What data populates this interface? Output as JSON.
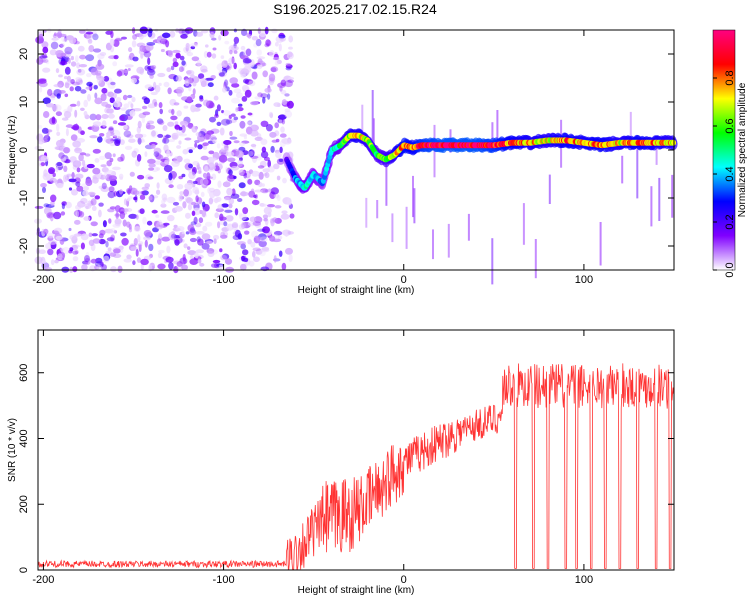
{
  "chart_data": [
    {
      "type": "heatmap",
      "title": "S196.2025.217.02.15.R24",
      "xlabel": "Height of straight line (km)",
      "ylabel": "Frequency (Hz)",
      "xlim": [
        -203,
        150
      ],
      "ylim": [
        -25,
        25
      ],
      "xticks": [
        -200,
        -100,
        0,
        100
      ],
      "yticks": [
        -20,
        -10,
        0,
        10,
        20
      ],
      "colorbar": {
        "label": "Normalized spectral amplitude",
        "range": [
          0,
          1
        ],
        "ticks": [
          0.0,
          0.2,
          0.4,
          0.6,
          0.8
        ],
        "colors": [
          "#ffffff",
          "#8000ff",
          "#0000ff",
          "#00ffff",
          "#00ff00",
          "#ffff00",
          "#ff0000",
          "#ff0080"
        ]
      },
      "noise_region_x": [
        -203,
        -62
      ],
      "ridge": {
        "x": [
          -65,
          -60,
          -55,
          -50,
          -45,
          -40,
          -35,
          -30,
          -25,
          -20,
          -15,
          -10,
          -5,
          0,
          5,
          10,
          20,
          30,
          40,
          50,
          60,
          70,
          80,
          90,
          100,
          110,
          120,
          130,
          140,
          150
        ],
        "y": [
          -2,
          -6,
          -8,
          -5,
          -7,
          0,
          1,
          3,
          3,
          2,
          -1,
          -2,
          -1,
          1,
          0.5,
          1,
          1,
          1,
          1,
          1,
          1.5,
          1.5,
          2,
          2,
          1.5,
          1,
          1.5,
          1.5,
          1.5,
          1.5
        ],
        "amplitude": [
          0.2,
          0.35,
          0.45,
          0.4,
          0.35,
          0.45,
          0.5,
          0.7,
          0.75,
          0.65,
          0.55,
          0.6,
          0.7,
          0.85,
          0.8,
          0.9,
          0.95,
          0.95,
          0.95,
          0.9,
          0.8,
          0.75,
          0.7,
          0.8,
          0.75,
          0.8,
          0.7,
          0.8,
          0.75,
          0.7
        ]
      }
    },
    {
      "type": "line",
      "xlabel": "Height of straight line (km)",
      "ylabel": "SNR (10 * v/v)",
      "xlim": [
        -203,
        150
      ],
      "ylim": [
        0,
        730
      ],
      "xticks": [
        -200,
        -100,
        0,
        100
      ],
      "yticks": [
        0,
        200,
        400,
        600
      ],
      "color": "#ff3333",
      "segments": [
        {
          "x": [
            -203,
            -65
          ],
          "y": [
            18,
            18
          ],
          "noise": 10
        },
        {
          "x": [
            -65,
            -45
          ],
          "y": [
            20,
            150
          ],
          "noise": 80
        },
        {
          "x": [
            -45,
            -25
          ],
          "y": [
            150,
            180
          ],
          "noise": 120
        },
        {
          "x": [
            -25,
            0
          ],
          "y": [
            180,
            330
          ],
          "noise": 100
        },
        {
          "x": [
            0,
            30
          ],
          "y": [
            330,
            420
          ],
          "noise": 60
        },
        {
          "x": [
            30,
            55
          ],
          "y": [
            420,
            470
          ],
          "noise": 50
        },
        {
          "x": [
            55,
            150
          ],
          "y": [
            560,
            560
          ],
          "noise": 70
        }
      ],
      "dropouts_x": [
        62,
        72,
        80,
        90,
        96,
        104,
        112,
        120,
        130,
        140,
        148
      ]
    }
  ]
}
